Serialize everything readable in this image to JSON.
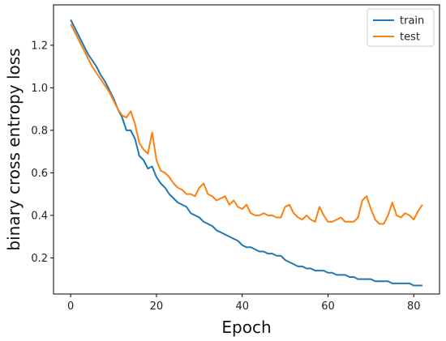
{
  "chart_data": {
    "type": "line",
    "title": "",
    "xlabel": "Epoch",
    "ylabel": "binary cross entropy loss",
    "xlim": [
      -4,
      86
    ],
    "ylim": [
      0.03,
      1.39
    ],
    "xticks": [
      0,
      20,
      40,
      60,
      80
    ],
    "yticks": [
      0.2,
      0.4,
      0.6,
      0.8,
      1.0,
      1.2
    ],
    "grid": false,
    "legend_position": "top-right",
    "series": [
      {
        "name": "train",
        "color": "#1f77b4",
        "x": [
          0,
          1,
          2,
          3,
          4,
          5,
          6,
          7,
          8,
          9,
          10,
          11,
          12,
          13,
          14,
          15,
          16,
          17,
          18,
          19,
          20,
          21,
          22,
          23,
          24,
          25,
          26,
          27,
          28,
          29,
          30,
          31,
          32,
          33,
          34,
          35,
          36,
          37,
          38,
          39,
          40,
          41,
          42,
          43,
          44,
          45,
          46,
          47,
          48,
          49,
          50,
          51,
          52,
          53,
          54,
          55,
          56,
          57,
          58,
          59,
          60,
          61,
          62,
          63,
          64,
          65,
          66,
          67,
          68,
          69,
          70,
          71,
          72,
          73,
          74,
          75,
          76,
          77,
          78,
          79,
          80,
          81,
          82
        ],
        "y": [
          1.32,
          1.28,
          1.24,
          1.2,
          1.16,
          1.13,
          1.1,
          1.06,
          1.03,
          0.99,
          0.95,
          0.9,
          0.86,
          0.8,
          0.8,
          0.76,
          0.68,
          0.66,
          0.62,
          0.63,
          0.58,
          0.55,
          0.53,
          0.5,
          0.48,
          0.46,
          0.45,
          0.44,
          0.41,
          0.4,
          0.39,
          0.37,
          0.36,
          0.35,
          0.33,
          0.32,
          0.31,
          0.3,
          0.29,
          0.28,
          0.26,
          0.25,
          0.25,
          0.24,
          0.23,
          0.23,
          0.22,
          0.22,
          0.21,
          0.21,
          0.19,
          0.18,
          0.17,
          0.16,
          0.16,
          0.15,
          0.15,
          0.14,
          0.14,
          0.14,
          0.13,
          0.13,
          0.12,
          0.12,
          0.12,
          0.11,
          0.11,
          0.1,
          0.1,
          0.1,
          0.1,
          0.09,
          0.09,
          0.09,
          0.09,
          0.08,
          0.08,
          0.08,
          0.08,
          0.08,
          0.07,
          0.07,
          0.07
        ]
      },
      {
        "name": "test",
        "color": "#ff7f0e",
        "x": [
          0,
          1,
          2,
          3,
          4,
          5,
          6,
          7,
          8,
          9,
          10,
          11,
          12,
          13,
          14,
          15,
          16,
          17,
          18,
          19,
          20,
          21,
          22,
          23,
          24,
          25,
          26,
          27,
          28,
          29,
          30,
          31,
          32,
          33,
          34,
          35,
          36,
          37,
          38,
          39,
          40,
          41,
          42,
          43,
          44,
          45,
          46,
          47,
          48,
          49,
          50,
          51,
          52,
          53,
          54,
          55,
          56,
          57,
          58,
          59,
          60,
          61,
          62,
          63,
          64,
          65,
          66,
          67,
          68,
          69,
          70,
          71,
          72,
          73,
          74,
          75,
          76,
          77,
          78,
          79,
          80,
          81,
          82
        ],
        "y": [
          1.3,
          1.26,
          1.22,
          1.18,
          1.14,
          1.1,
          1.07,
          1.04,
          1.01,
          0.98,
          0.94,
          0.9,
          0.87,
          0.86,
          0.89,
          0.83,
          0.74,
          0.71,
          0.69,
          0.79,
          0.66,
          0.61,
          0.6,
          0.58,
          0.55,
          0.53,
          0.52,
          0.5,
          0.5,
          0.49,
          0.53,
          0.55,
          0.5,
          0.49,
          0.47,
          0.48,
          0.49,
          0.45,
          0.47,
          0.44,
          0.43,
          0.45,
          0.41,
          0.4,
          0.4,
          0.41,
          0.4,
          0.4,
          0.39,
          0.39,
          0.44,
          0.45,
          0.41,
          0.39,
          0.38,
          0.4,
          0.38,
          0.37,
          0.44,
          0.4,
          0.37,
          0.37,
          0.38,
          0.39,
          0.37,
          0.37,
          0.37,
          0.39,
          0.47,
          0.49,
          0.43,
          0.38,
          0.36,
          0.36,
          0.4,
          0.46,
          0.4,
          0.39,
          0.41,
          0.4,
          0.38,
          0.42,
          0.45
        ]
      }
    ]
  }
}
